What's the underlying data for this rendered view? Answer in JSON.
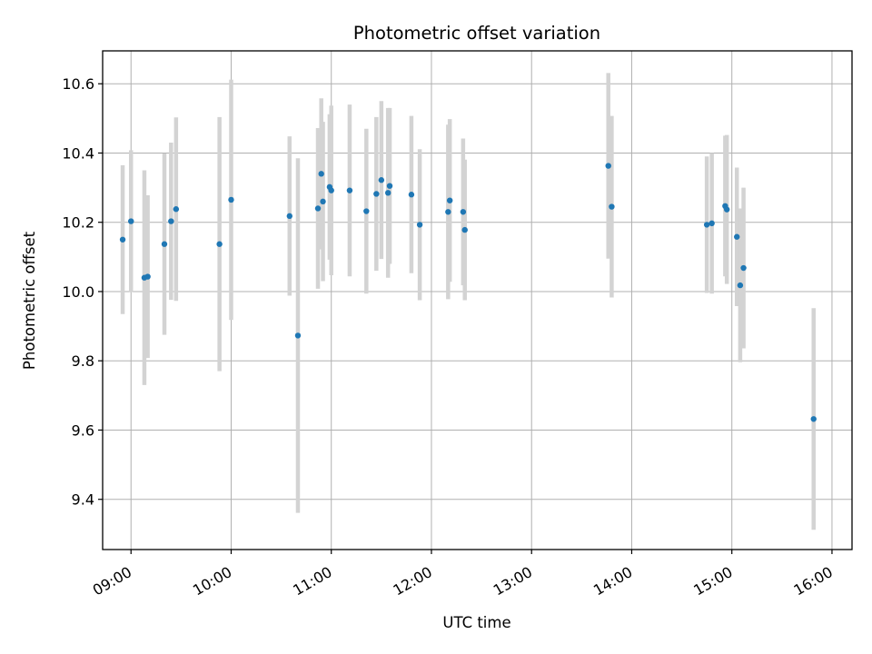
{
  "chart_data": {
    "type": "scatter",
    "title": "Photometric offset variation",
    "xlabel": "UTC time",
    "ylabel": "Photometric offset",
    "xlim": [
      "08:43",
      "16:12"
    ],
    "ylim": [
      9.255,
      10.695
    ],
    "x_ticks": [
      "09:00",
      "10:00",
      "11:00",
      "12:00",
      "13:00",
      "14:00",
      "15:00",
      "16:00"
    ],
    "y_ticks": [
      "9.4",
      "9.6",
      "9.8",
      "10.0",
      "10.2",
      "10.4",
      "10.6"
    ],
    "grid": true,
    "colors": {
      "points": "#1f77b4",
      "error_bars": "#d3d3d3",
      "grid": "#b0b0b0"
    },
    "series": [
      {
        "points": [
          {
            "x": "08:55",
            "y": 10.15,
            "err": 0.215
          },
          {
            "x": "09:00",
            "y": 10.203,
            "err": 0.205
          },
          {
            "x": "09:08",
            "y": 10.04,
            "err": 0.31
          },
          {
            "x": "09:10",
            "y": 10.043,
            "err": 0.235
          },
          {
            "x": "09:20",
            "y": 10.137,
            "err": 0.262
          },
          {
            "x": "09:24",
            "y": 10.203,
            "err": 0.227
          },
          {
            "x": "09:27",
            "y": 10.238,
            "err": 0.265
          },
          {
            "x": "09:53",
            "y": 10.137,
            "err": 0.367
          },
          {
            "x": "10:00",
            "y": 10.265,
            "err": 0.347
          },
          {
            "x": "10:35",
            "y": 10.218,
            "err": 0.23
          },
          {
            "x": "10:40",
            "y": 9.873,
            "err": 0.512
          },
          {
            "x": "10:52",
            "y": 10.24,
            "err": 0.232
          },
          {
            "x": "10:54",
            "y": 10.34,
            "err": 0.218
          },
          {
            "x": "10:55",
            "y": 10.26,
            "err": 0.23
          },
          {
            "x": "10:59",
            "y": 10.302,
            "err": 0.21
          },
          {
            "x": "11:00",
            "y": 10.292,
            "err": 0.245
          },
          {
            "x": "11:11",
            "y": 10.292,
            "err": 0.248
          },
          {
            "x": "11:21",
            "y": 10.232,
            "err": 0.238
          },
          {
            "x": "11:27",
            "y": 10.282,
            "err": 0.222
          },
          {
            "x": "11:30",
            "y": 10.322,
            "err": 0.228
          },
          {
            "x": "11:34",
            "y": 10.285,
            "err": 0.245
          },
          {
            "x": "11:35",
            "y": 10.305,
            "err": 0.225
          },
          {
            "x": "11:48",
            "y": 10.28,
            "err": 0.227
          },
          {
            "x": "11:53",
            "y": 10.193,
            "err": 0.218
          },
          {
            "x": "12:10",
            "y": 10.23,
            "err": 0.252
          },
          {
            "x": "12:11",
            "y": 10.263,
            "err": 0.235
          },
          {
            "x": "12:19",
            "y": 10.23,
            "err": 0.212
          },
          {
            "x": "12:20",
            "y": 10.178,
            "err": 0.203
          },
          {
            "x": "13:46",
            "y": 10.363,
            "err": 0.268
          },
          {
            "x": "13:48",
            "y": 10.245,
            "err": 0.262
          },
          {
            "x": "14:45",
            "y": 10.193,
            "err": 0.197
          },
          {
            "x": "14:48",
            "y": 10.197,
            "err": 0.203
          },
          {
            "x": "14:56",
            "y": 10.247,
            "err": 0.203
          },
          {
            "x": "14:57",
            "y": 10.237,
            "err": 0.215
          },
          {
            "x": "15:03",
            "y": 10.158,
            "err": 0.2
          },
          {
            "x": "15:05",
            "y": 10.018,
            "err": 0.222
          },
          {
            "x": "15:07",
            "y": 10.068,
            "err": 0.232
          },
          {
            "x": "15:49",
            "y": 9.632,
            "err": 0.32
          }
        ]
      }
    ]
  }
}
